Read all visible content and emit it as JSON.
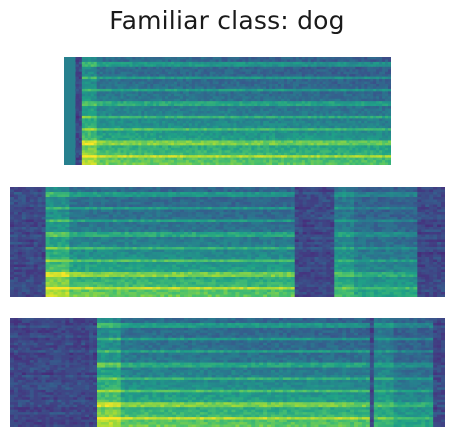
{
  "figure": {
    "title": "Familiar class: dog"
  },
  "colormap": {
    "name": "viridis",
    "stops": [
      "#440154",
      "#46327e",
      "#365c8d",
      "#277f8e",
      "#1fa187",
      "#4ac16d",
      "#a0da39",
      "#fde725"
    ]
  },
  "spectrograms": [
    {
      "id": "spec-1",
      "onset": 0.05,
      "offset": 1.0,
      "left_band_color": "#27808e"
    },
    {
      "id": "spec-2",
      "onset": 0.08,
      "offset": 0.65,
      "second_onset": 0.74,
      "second_offset": 0.93
    },
    {
      "id": "spec-3",
      "onset": 0.2,
      "offset": 0.82,
      "second_onset": 0.83,
      "second_offset": 0.97
    }
  ]
}
